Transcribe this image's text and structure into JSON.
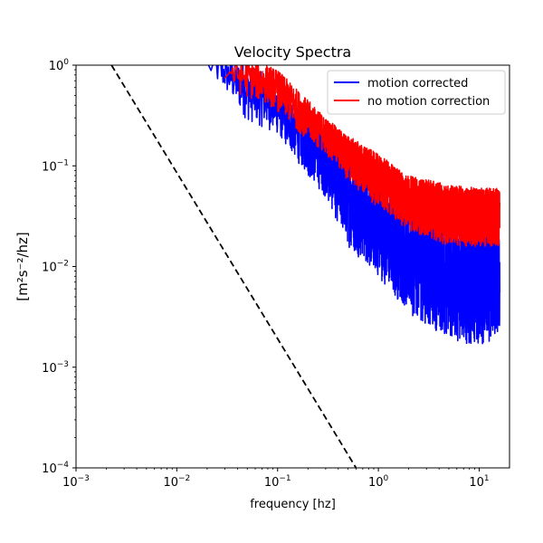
{
  "chart_data": {
    "type": "line",
    "title": "Velocity Spectra",
    "xlabel": "frequency [hz]",
    "ylabel": "[m²s⁻²/hz]",
    "xscale": "log",
    "yscale": "log",
    "xlim": [
      0.001,
      20
    ],
    "ylim": [
      0.0001,
      1
    ],
    "grid": false,
    "legend": "top-right",
    "x_ticks": [
      {
        "value": 0.001,
        "base": "10",
        "exp": "−3"
      },
      {
        "value": 0.01,
        "base": "10",
        "exp": "−2"
      },
      {
        "value": 0.1,
        "base": "10",
        "exp": "−1"
      },
      {
        "value": 1,
        "base": "10",
        "exp": "0"
      },
      {
        "value": 10,
        "base": "10",
        "exp": "1"
      }
    ],
    "y_ticks": [
      {
        "value": 0.0001,
        "base": "10",
        "exp": "−4"
      },
      {
        "value": 0.001,
        "base": "10",
        "exp": "−3"
      },
      {
        "value": 0.01,
        "base": "10",
        "exp": "−2"
      },
      {
        "value": 0.1,
        "base": "10",
        "exp": "−1"
      },
      {
        "value": 1,
        "base": "10",
        "exp": "0"
      }
    ],
    "series": [
      {
        "name": "motion corrected",
        "color": "#0000ff",
        "envelope": [
          {
            "x": 0.02,
            "low": 0.7,
            "high": 1.2
          },
          {
            "x": 0.03,
            "low": 0.4,
            "high": 1.2
          },
          {
            "x": 0.05,
            "low": 0.18,
            "high": 1.0
          },
          {
            "x": 0.08,
            "low": 0.15,
            "high": 0.8
          },
          {
            "x": 0.1,
            "low": 0.14,
            "high": 0.6
          },
          {
            "x": 0.2,
            "low": 0.05,
            "high": 0.3
          },
          {
            "x": 0.3,
            "low": 0.03,
            "high": 0.2
          },
          {
            "x": 0.5,
            "low": 0.008,
            "high": 0.12
          },
          {
            "x": 1,
            "low": 0.004,
            "high": 0.06
          },
          {
            "x": 2,
            "low": 0.0015,
            "high": 0.04
          },
          {
            "x": 5,
            "low": 0.0008,
            "high": 0.025
          },
          {
            "x": 10,
            "low": 0.0007,
            "high": 0.02
          },
          {
            "x": 16,
            "low": 0.0009,
            "high": 0.02
          }
        ]
      },
      {
        "name": "no motion correction",
        "color": "#ff0000",
        "envelope": [
          {
            "x": 0.03,
            "low": 0.45,
            "high": 1.2
          },
          {
            "x": 0.05,
            "low": 0.35,
            "high": 1.1
          },
          {
            "x": 0.08,
            "low": 0.3,
            "high": 1.0
          },
          {
            "x": 0.1,
            "low": 0.25,
            "high": 0.9
          },
          {
            "x": 0.2,
            "low": 0.13,
            "high": 0.45
          },
          {
            "x": 0.3,
            "low": 0.1,
            "high": 0.3
          },
          {
            "x": 0.5,
            "low": 0.05,
            "high": 0.2
          },
          {
            "x": 1,
            "low": 0.025,
            "high": 0.13
          },
          {
            "x": 2,
            "low": 0.015,
            "high": 0.08
          },
          {
            "x": 5,
            "low": 0.01,
            "high": 0.065
          },
          {
            "x": 10,
            "low": 0.01,
            "high": 0.06
          },
          {
            "x": 16,
            "low": 0.01,
            "high": 0.06
          }
        ]
      },
      {
        "name": "",
        "color": "#000000",
        "style": "dashed",
        "points": [
          {
            "x": 0.00225,
            "y": 1
          },
          {
            "x": 0.6,
            "y": 0.0001
          }
        ]
      }
    ]
  }
}
